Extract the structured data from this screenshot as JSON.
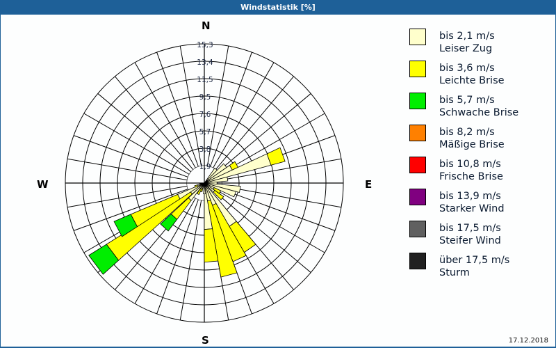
{
  "header": {
    "title": "Windstatistik [%]"
  },
  "compass": {
    "north": "N",
    "east": "E",
    "south": "S",
    "west": "W"
  },
  "footer": {
    "date": "17.12.2018"
  },
  "legend": {
    "items": [
      {
        "range": "bis 2,1 m/s",
        "label": "Leiser Zug",
        "color": "#ffffcc"
      },
      {
        "range": "bis 3,6 m/s",
        "label": "Leichte Brise",
        "color": "#ffff00"
      },
      {
        "range": "bis 5,7 m/s",
        "label": "Schwache Brise",
        "color": "#00ee00"
      },
      {
        "range": "bis 8,2 m/s",
        "label": "Mäßige Brise",
        "color": "#ff8000"
      },
      {
        "range": "bis 10,8 m/s",
        "label": "Frische Brise",
        "color": "#ff0000"
      },
      {
        "range": "bis 13,9 m/s",
        "label": "Starker Wind",
        "color": "#800080"
      },
      {
        "range": "bis 17,5 m/s",
        "label": "Steifer Wind",
        "color": "#606060"
      },
      {
        "range": "über 17,5 m/s",
        "label": "Sturm",
        "color": "#202020"
      }
    ]
  },
  "chart_data": {
    "type": "polar-bar",
    "title": "Windstatistik [%]",
    "radial_ticks": [
      "1,9",
      "3,8",
      "5,7",
      "7,6",
      "9,5",
      "11,5",
      "13,4",
      "15,3"
    ],
    "rmax": 15.3,
    "direction_step_deg": 10,
    "series_names": [
      "Leiser Zug",
      "Leichte Brise",
      "Schwache Brise",
      "Mäßige Brise",
      "Frische Brise",
      "Starker Wind",
      "Steifer Wind",
      "Sturm"
    ],
    "sectors": [
      {
        "bearing": 40,
        "values": [
          2.0,
          0,
          0
        ]
      },
      {
        "bearing": 50,
        "values": [
          3.0,
          0,
          0
        ]
      },
      {
        "bearing": 60,
        "values": [
          3.4,
          0.7,
          0
        ]
      },
      {
        "bearing": 70,
        "values": [
          7.6,
          1.6,
          0
        ]
      },
      {
        "bearing": 80,
        "values": [
          2.6,
          0,
          0
        ]
      },
      {
        "bearing": 90,
        "values": [
          1.4,
          0,
          0
        ]
      },
      {
        "bearing": 100,
        "values": [
          4.0,
          0,
          0
        ]
      },
      {
        "bearing": 110,
        "values": [
          3.6,
          0,
          0
        ]
      },
      {
        "bearing": 120,
        "values": [
          1.2,
          0.8,
          0
        ]
      },
      {
        "bearing": 130,
        "values": [
          1.4,
          1.2,
          0
        ]
      },
      {
        "bearing": 145,
        "values": [
          5.5,
          3.3,
          0
        ]
      },
      {
        "bearing": 155,
        "values": [
          2.6,
          6.6,
          0
        ]
      },
      {
        "bearing": 165,
        "values": [
          2.0,
          8.5,
          0
        ]
      },
      {
        "bearing": 175,
        "values": [
          5.1,
          3.6,
          0
        ]
      },
      {
        "bearing": 180,
        "values": [
          1.2,
          0,
          0
        ]
      },
      {
        "bearing": 200,
        "values": [
          0.6,
          0.4,
          0
        ]
      },
      {
        "bearing": 210,
        "values": [
          0.8,
          0.6,
          0
        ]
      },
      {
        "bearing": 222,
        "values": [
          2.4,
          2.6,
          1.6
        ]
      },
      {
        "bearing": 233,
        "values": [
          1.8,
          10.9,
          2.3
        ]
      },
      {
        "bearing": 242,
        "values": [
          3.2,
          5.6,
          2.0
        ]
      },
      {
        "bearing": 250,
        "values": [
          0.8,
          0.3,
          0
        ]
      },
      {
        "bearing": 260,
        "values": [
          0.5,
          0,
          0
        ]
      }
    ]
  }
}
